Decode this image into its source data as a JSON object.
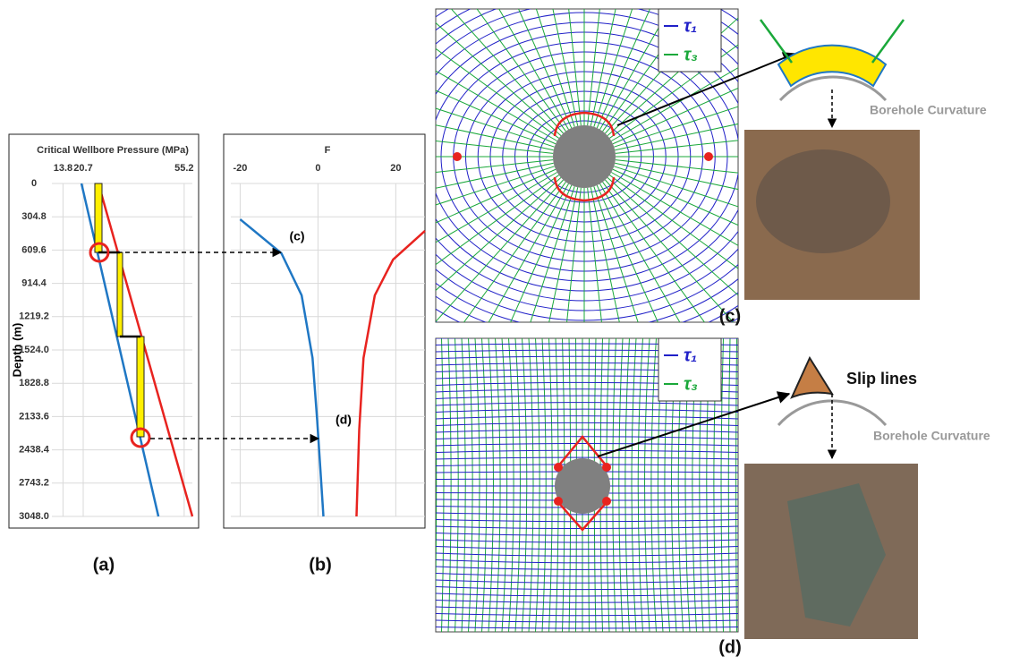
{
  "chart_data": [
    {
      "type": "line",
      "label": "(a)",
      "title": "Critical Wellbore Pressure (MPa)",
      "xticks": [
        13.8,
        20.7,
        55.2
      ],
      "xlim": [
        10,
        58
      ],
      "ylabel": "Depth (m)",
      "ylim": [
        0,
        3048
      ],
      "y_reversed": true,
      "yticks": [
        0,
        304.8,
        609.6,
        914.4,
        1219.2,
        {
          "value": 1524,
          "label": "1524.0"
        },
        1828.8,
        2133.6,
        2438.4,
        2743.2,
        {
          "value": 3048,
          "label": "3048.0"
        }
      ],
      "y": [
        0,
        3048
      ],
      "series": [
        {
          "color": "#1f77c4",
          "values": [
            20.1,
            46.4
          ]
        },
        {
          "color": "#e8231f",
          "values": [
            25.9,
            58
          ]
        }
      ]
    },
    {
      "type": "line",
      "label": "(b)",
      "title": "F",
      "xticks": [
        -20,
        0,
        20
      ],
      "xlim": [
        -22.4,
        27.5
      ],
      "ylim": [
        0,
        3048
      ],
      "y_reversed": true,
      "yticks": [
        0,
        304.8,
        609.6,
        914.4,
        1219.2,
        1524,
        1828.8,
        2133.6,
        2438.4,
        2743.2,
        3048
      ],
      "annotations": [
        "(c)",
        "(d)"
      ],
      "series": [
        {
          "color": "#1f77c4",
          "y": [
            328,
            639,
            1024,
            1598,
            2171,
            2663,
            3048
          ],
          "values": [
            -20,
            -9.4,
            -4.2,
            -1.4,
            -0.2,
            0.7,
            1.4
          ]
        },
        {
          "color": "#e8231f",
          "y": [
            434,
            697,
            1024,
            1598,
            2253,
            3048
          ],
          "values": [
            27.5,
            19.3,
            14.6,
            11.7,
            10.6,
            9.9
          ]
        }
      ]
    }
  ],
  "panel_c": {
    "label": "(c)",
    "legend": [
      "τ₁",
      "τ₃"
    ],
    "sketch_label": "Borehole Curvature"
  },
  "panel_d": {
    "label": "(d)",
    "legend": [
      "τ₁",
      "τ₃"
    ],
    "slip_label": "Slip lines",
    "sketch_label": "Borehole Curvature"
  }
}
